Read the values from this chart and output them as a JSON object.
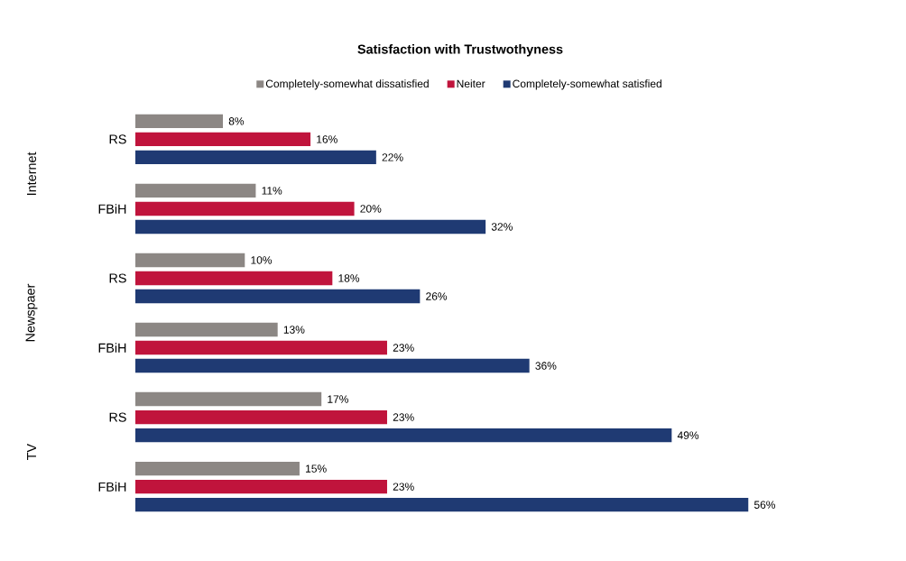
{
  "chart_data": {
    "type": "bar",
    "orientation": "horizontal",
    "title": "Satisfaction with Trustwothyness",
    "categories": [
      "RS",
      "FBiH",
      "RS",
      "FBiH",
      "RS",
      "FBiH"
    ],
    "annotations": [
      "Internet",
      "Newspaer",
      "TV"
    ],
    "series": [
      {
        "name": "Completely-somewhat dissatisfied",
        "color": "#8c8784",
        "values": [
          8,
          11,
          10,
          13,
          17,
          15
        ],
        "value_labels": [
          "8%",
          "11%",
          "10%",
          "13%",
          "17%",
          "15%"
        ]
      },
      {
        "name": "Neiter",
        "color": "#c0143c",
        "values": [
          16,
          20,
          18,
          23,
          23,
          23
        ],
        "value_labels": [
          "16%",
          "20%",
          "18%",
          "23%",
          "23%",
          "23%"
        ]
      },
      {
        "name": "Completely-somewhat satisfied",
        "color": "#1f3a73",
        "values": [
          22,
          32,
          26,
          36,
          49,
          56
        ],
        "value_labels": [
          "22%",
          "32%",
          "26%",
          "36%",
          "49%",
          "56%"
        ]
      }
    ],
    "legend": "top",
    "tick_labels": "y",
    "grid": false
  }
}
